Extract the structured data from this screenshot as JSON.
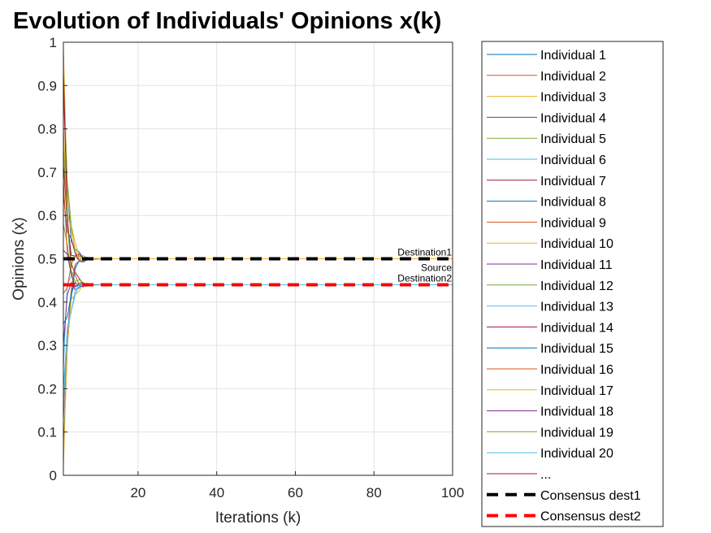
{
  "chart_data": {
    "type": "line",
    "title": "Evolution of Individuals' Opinions x(k)",
    "xlabel": "Iterations (k)",
    "ylabel": "Opinions (x)",
    "xlim": [
      1,
      100
    ],
    "ylim": [
      0,
      1
    ],
    "x_ticks": [
      20,
      40,
      60,
      80,
      100
    ],
    "y_ticks": [
      0,
      0.1,
      0.2,
      0.3,
      0.4,
      0.5,
      0.6,
      0.7,
      0.8,
      0.9,
      1
    ],
    "grid": true,
    "legend_position": "outside-right",
    "series": [
      {
        "name": "Individual 1",
        "color": "#0072BD",
        "initial": 0.96,
        "final": 0.5
      },
      {
        "name": "Individual 2",
        "color": "#D95319",
        "initial": 0.13,
        "final": 0.5
      },
      {
        "name": "Individual 3",
        "color": "#EDB120",
        "initial": 0.99,
        "final": 0.5
      },
      {
        "name": "Individual 4",
        "color": "#7E2F8E",
        "initial": 0.65,
        "final": 0.5
      },
      {
        "name": "Individual 5",
        "color": "#77AC30",
        "initial": 0.88,
        "final": 0.5
      },
      {
        "name": "Individual 6",
        "color": "#4DBEEE",
        "initial": 0.25,
        "final": 0.5
      },
      {
        "name": "Individual 7",
        "color": "#A2142F",
        "initial": 0.72,
        "final": 0.5
      },
      {
        "name": "Individual 8",
        "color": "#0072BD",
        "initial": 0.05,
        "final": 0.5
      },
      {
        "name": "Individual 9",
        "color": "#D95319",
        "initial": 0.42,
        "final": 0.5
      },
      {
        "name": "Individual 10",
        "color": "#EDB120",
        "initial": 0.8,
        "final": 0.5
      },
      {
        "name": "Individual 11",
        "color": "#7E2F8E",
        "initial": 0.3,
        "final": 0.44
      },
      {
        "name": "Individual 12",
        "color": "#77AC30",
        "initial": 0.58,
        "final": 0.44
      },
      {
        "name": "Individual 13",
        "color": "#4DBEEE",
        "initial": 0.15,
        "final": 0.44
      },
      {
        "name": "Individual 14",
        "color": "#A2142F",
        "initial": 0.93,
        "final": 0.44
      },
      {
        "name": "Individual 15",
        "color": "#0072BD",
        "initial": 0.35,
        "final": 0.44
      },
      {
        "name": "Individual 16",
        "color": "#D95319",
        "initial": 0.68,
        "final": 0.44
      },
      {
        "name": "Individual 17",
        "color": "#EDB120",
        "initial": 0.02,
        "final": 0.44
      },
      {
        "name": "Individual 18",
        "color": "#7E2F8E",
        "initial": 0.52,
        "final": 0.44
      },
      {
        "name": "Individual 19",
        "color": "#77AC30",
        "initial": 0.76,
        "final": 0.44
      },
      {
        "name": "Individual 20",
        "color": "#4DBEEE",
        "initial": 0.2,
        "final": 0.44
      }
    ],
    "consensus": [
      {
        "name": "Consensus dest1",
        "value": 0.5,
        "color": "#000000"
      },
      {
        "name": "Consensus dest2",
        "value": 0.44,
        "color": "#FF0000"
      }
    ],
    "annotations": [
      {
        "text": "Destination1",
        "x": 100,
        "y": 0.5,
        "position": "above"
      },
      {
        "text": "Source",
        "x": 100,
        "y": 0.5,
        "position": "below"
      },
      {
        "text": "Destination2",
        "x": 100,
        "y": 0.44,
        "position": "above"
      }
    ],
    "legend_ellipsis": {
      "label": "...",
      "color": "#A2142F"
    }
  }
}
